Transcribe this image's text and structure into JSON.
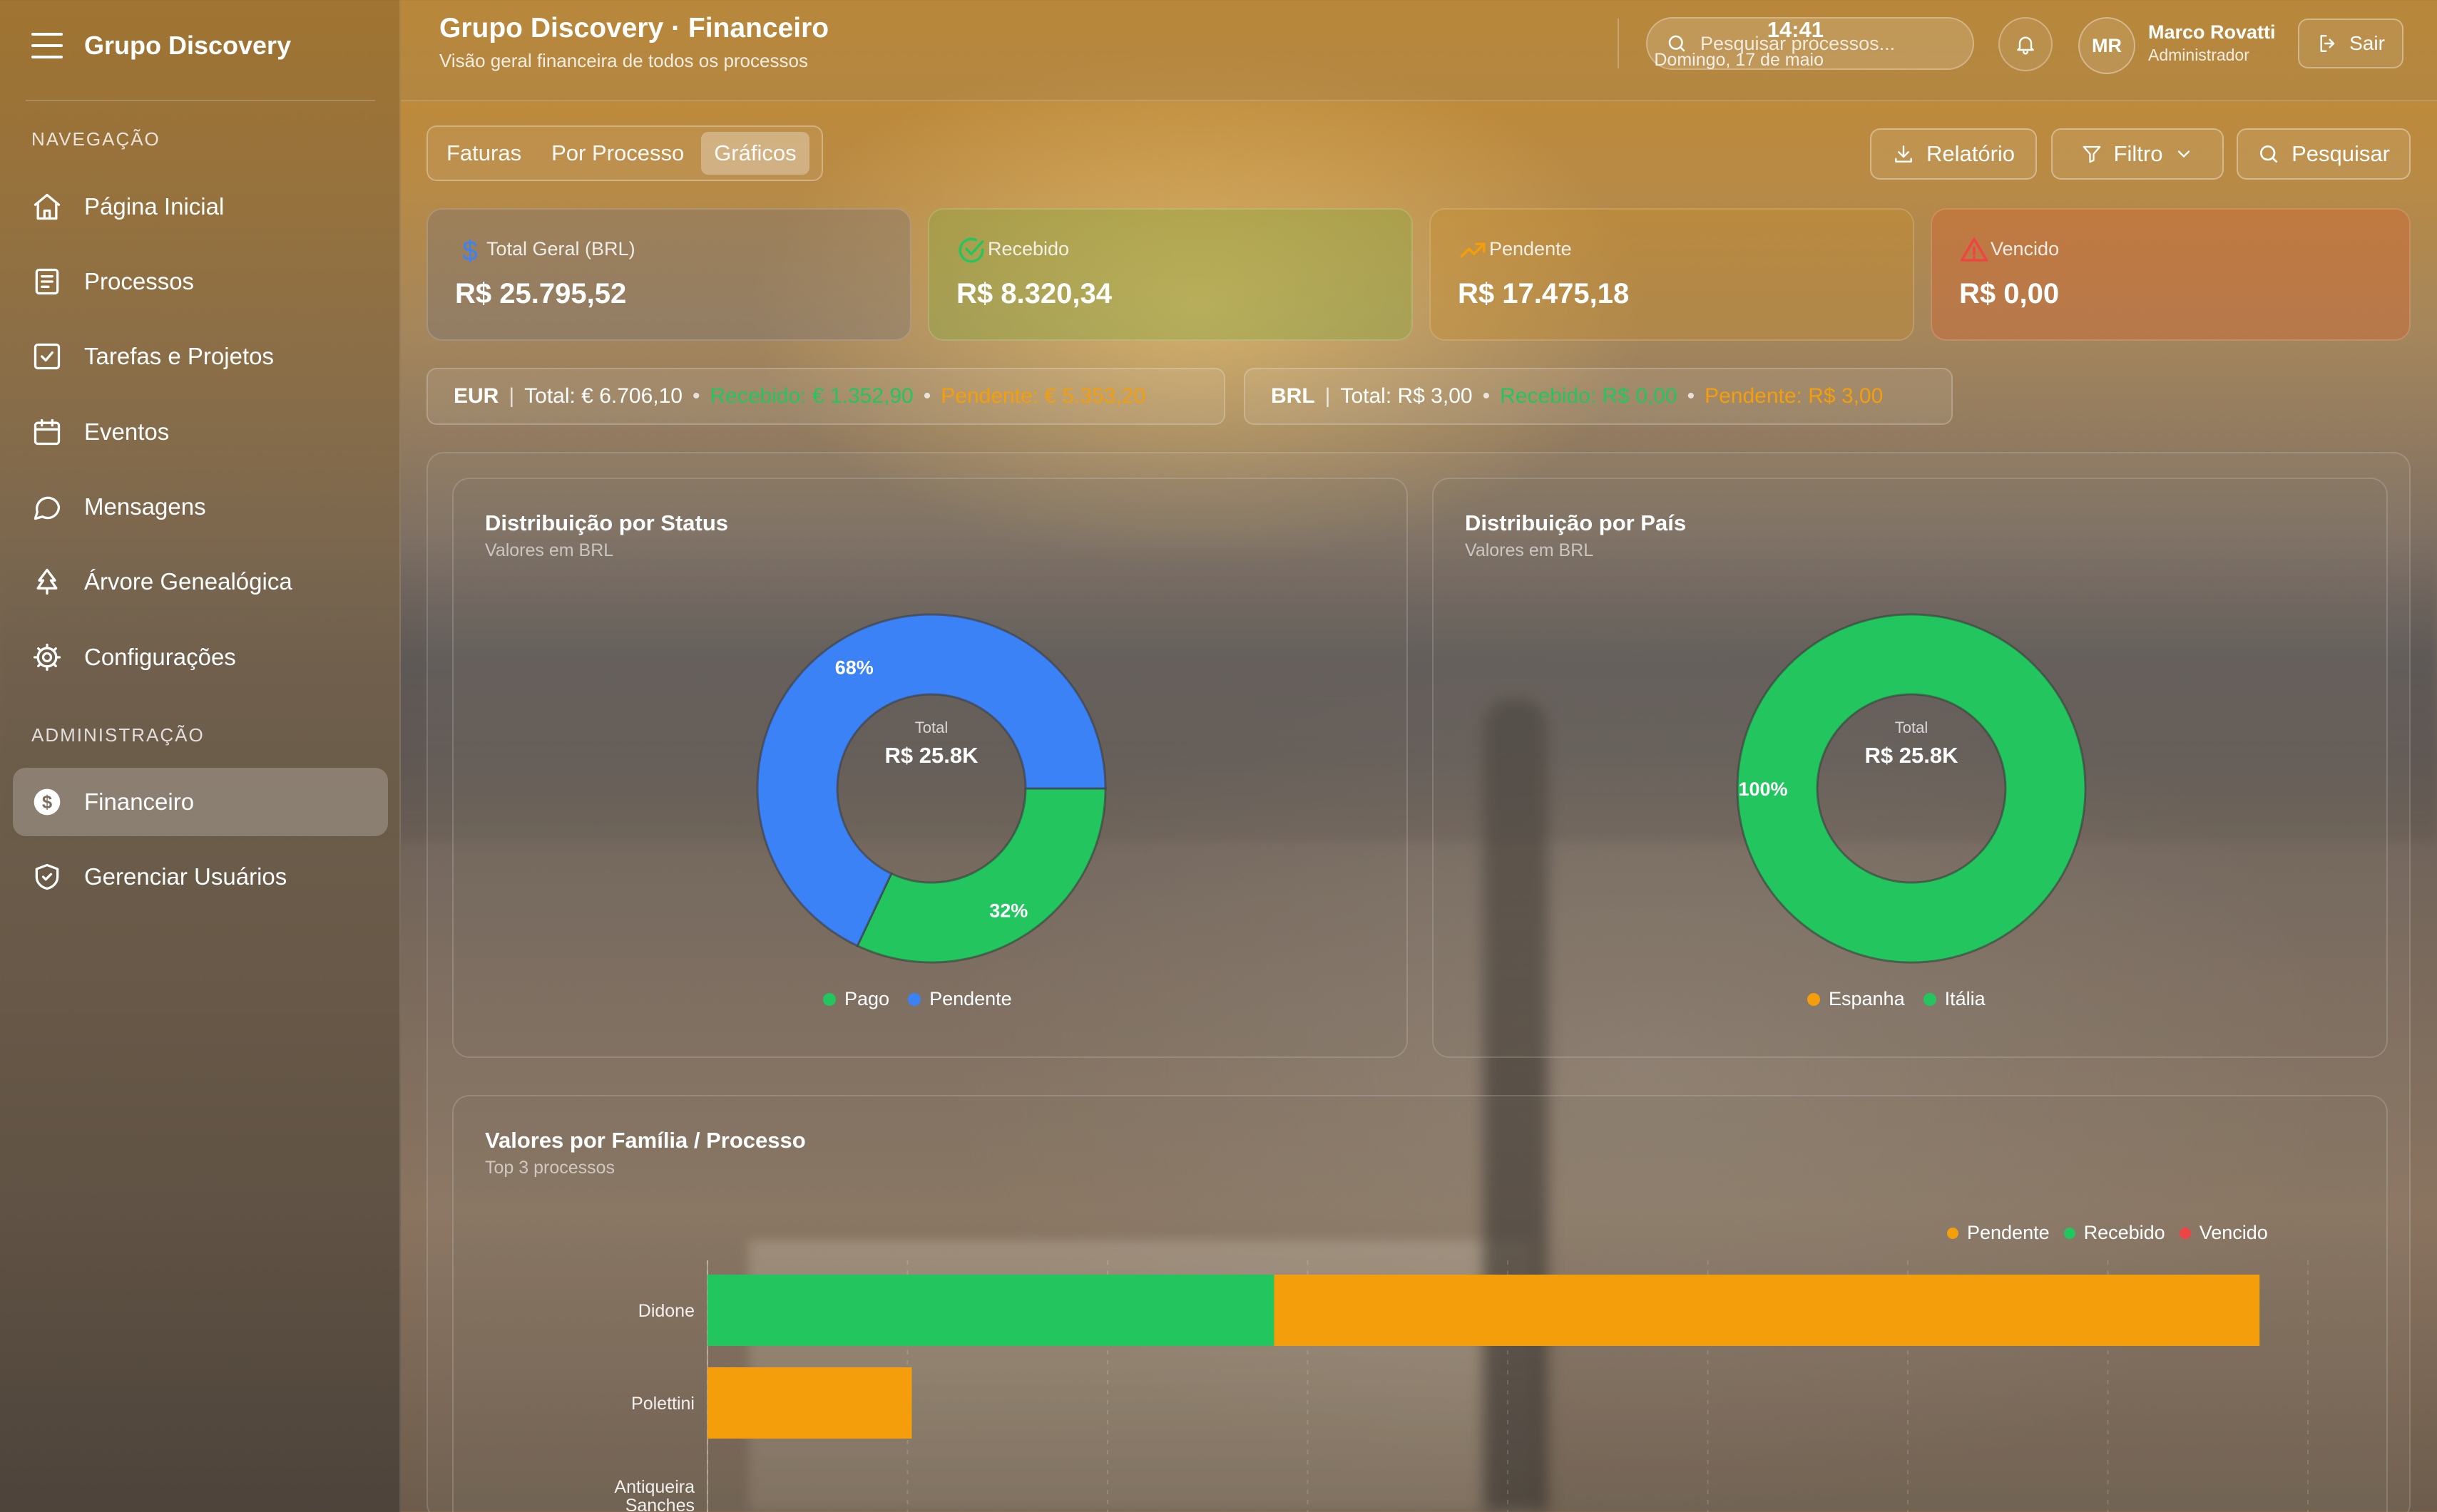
{
  "app": {
    "brand": "Grupo Discovery",
    "title": "Grupo Discovery · Financeiro",
    "subtitle": "Visão geral financeira de todos os processos"
  },
  "sidebar": {
    "section_nav": "NAVEGAÇÃO",
    "section_admin": "ADMINISTRAÇÃO",
    "nav_items": [
      {
        "label": "Página Inicial",
        "icon": "home-icon"
      },
      {
        "label": "Processos",
        "icon": "document-icon"
      },
      {
        "label": "Tarefas e Projetos",
        "icon": "checkbox-icon"
      },
      {
        "label": "Eventos",
        "icon": "calendar-icon"
      },
      {
        "label": "Mensagens",
        "icon": "message-icon"
      },
      {
        "label": "Árvore Genealógica",
        "icon": "tree-icon"
      },
      {
        "label": "Configurações",
        "icon": "gear-icon"
      }
    ],
    "admin_items": [
      {
        "label": "Financeiro",
        "icon": "dollar-circle-icon",
        "active": true
      },
      {
        "label": "Gerenciar Usuários",
        "icon": "shield-icon"
      }
    ]
  },
  "header": {
    "time": "14:41",
    "date": "Domingo, 17 de maio",
    "search_placeholder": "Pesquisar processos...",
    "user_initials": "MR",
    "user_name": "Marco Rovatti",
    "user_role": "Administrador",
    "logout_label": "Sair"
  },
  "toolbar": {
    "tabs": [
      {
        "label": "Faturas",
        "active": false
      },
      {
        "label": "Por Processo",
        "active": false
      },
      {
        "label": "Gráficos",
        "active": true
      }
    ],
    "report_label": "Relatório",
    "filter_label": "Filtro",
    "search_label": "Pesquisar"
  },
  "stats": [
    {
      "label": "Total Geral (BRL)",
      "value": "R$ 25.795,52",
      "icon": "dollar-icon",
      "color": "#3b82f6"
    },
    {
      "label": "Recebido",
      "value": "R$ 8.320,34",
      "icon": "check-circle-icon",
      "color": "#22c55e"
    },
    {
      "label": "Pendente",
      "value": "R$ 17.475,18",
      "icon": "trending-up-icon",
      "color": "#f59e0b"
    },
    {
      "label": "Vencido",
      "value": "R$ 0,00",
      "icon": "warning-icon",
      "color": "#ef4444"
    }
  ],
  "currencies": [
    {
      "code": "EUR",
      "total": "Total: € 6.706,10",
      "received": "Recebido: € 1.352,90",
      "pending": "Pendente: € 5.353,20"
    },
    {
      "code": "BRL",
      "total": "Total: R$ 3,00",
      "received": "Recebido: R$ 0,00",
      "pending": "Pendente: R$ 3,00"
    }
  ],
  "charts": {
    "status": {
      "title": "Distribuição por Status",
      "subtitle": "Valores em BRL",
      "center_label": "Total",
      "center_value": "R$ 25.8K",
      "legend": [
        "Pago",
        "Pendente"
      ]
    },
    "country": {
      "title": "Distribuição por País",
      "subtitle": "Valores em BRL",
      "center_label": "Total",
      "center_value": "R$ 25.8K",
      "legend": [
        "Espanha",
        "Itália"
      ]
    },
    "family": {
      "title": "Valores por Família / Processo",
      "subtitle": "Top 3 processos",
      "legend": [
        "Pendente",
        "Recebido",
        "Vencido"
      ]
    }
  },
  "chart_data": [
    {
      "type": "pie",
      "title": "Distribuição por Status",
      "subtitle": "Valores em BRL",
      "labels": [
        "Pago",
        "Pendente"
      ],
      "values": [
        32,
        68
      ],
      "unit": "%",
      "colors": [
        "#22c55e",
        "#3b82f6"
      ]
    },
    {
      "type": "pie",
      "title": "Distribuição por País",
      "subtitle": "Valores em BRL",
      "labels": [
        "Espanha",
        "Itália"
      ],
      "values": [
        0,
        100
      ],
      "unit": "%",
      "colors": [
        "#f59e0b",
        "#22c55e"
      ]
    },
    {
      "type": "bar",
      "orientation": "horizontal",
      "stacked": true,
      "title": "Valores por Família / Processo",
      "subtitle": "Top 3 processos",
      "categories": [
        "Didone",
        "Polettini",
        "Antiqueira Sanches"
      ],
      "series": [
        {
          "name": "Recebido",
          "color": "#22c55e",
          "values": [
            8320,
            0,
            0
          ]
        },
        {
          "name": "Pendente",
          "color": "#f59e0b",
          "values": [
            14470,
            3000,
            0
          ]
        },
        {
          "name": "Vencido",
          "color": "#ef4444",
          "values": [
            0,
            0,
            0
          ]
        }
      ],
      "xlim": [
        0,
        23500
      ],
      "grid": true,
      "legend_position": "top-right"
    }
  ]
}
